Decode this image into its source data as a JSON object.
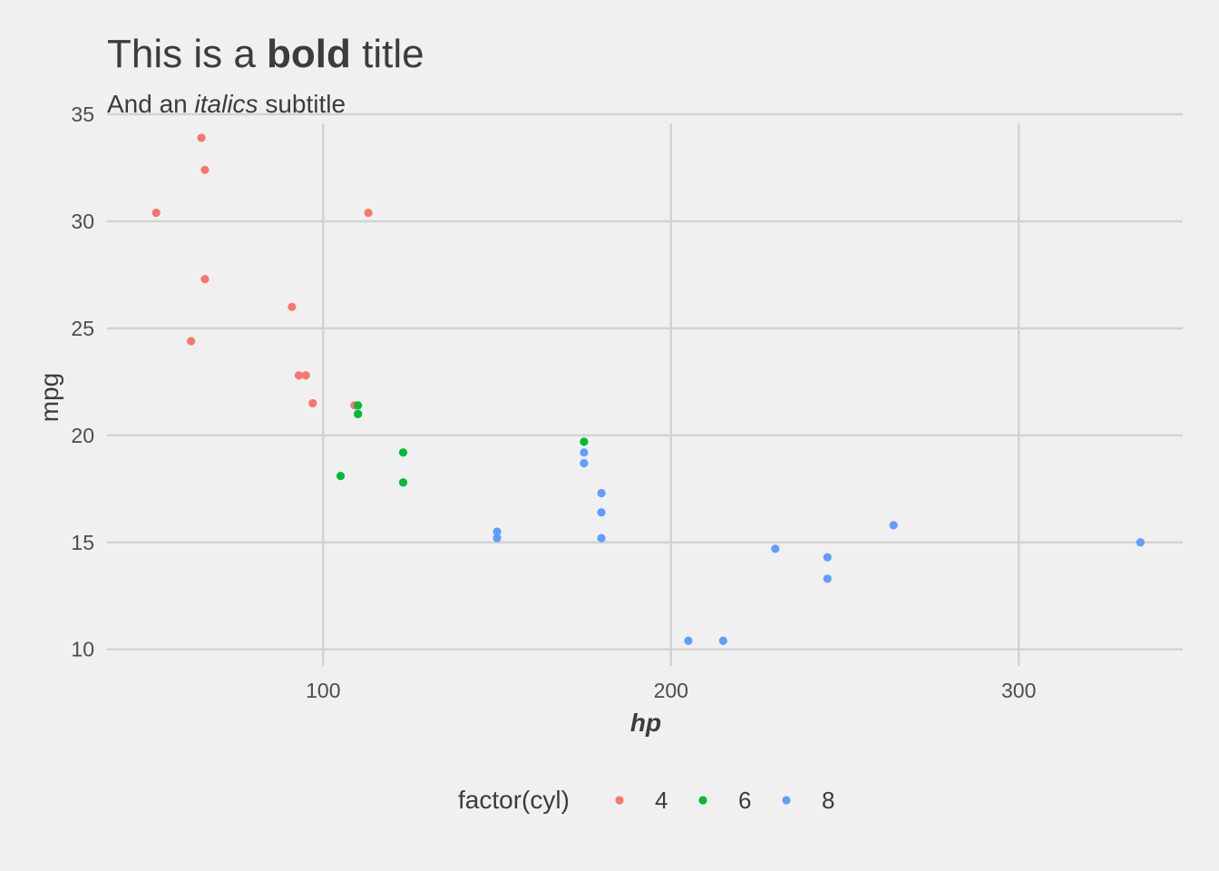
{
  "chart_data": {
    "type": "scatter",
    "title_parts": [
      {
        "text": "This is a ",
        "style": "plain"
      },
      {
        "text": "bold",
        "style": "bold"
      },
      {
        "text": " title",
        "style": "plain"
      }
    ],
    "subtitle_parts": [
      {
        "text": "And an ",
        "style": "plain"
      },
      {
        "text": "italics",
        "style": "italic"
      },
      {
        "text": " subtitle",
        "style": "plain"
      }
    ],
    "xlabel": "hp",
    "ylabel": "mpg",
    "xlim": [
      37.85,
      347.15
    ],
    "ylim": [
      9.225,
      34.575
    ],
    "xticks": [
      100,
      200,
      300
    ],
    "yticks": [
      10,
      15,
      20,
      25,
      30,
      35
    ],
    "grid": true,
    "legend": {
      "title": "factor(cyl)",
      "position": "bottom"
    },
    "series": [
      {
        "name": "4",
        "color": "#F8766D",
        "x": [
          93,
          62,
          95,
          66,
          52,
          65,
          97,
          66,
          91,
          113,
          109
        ],
        "y": [
          22.8,
          24.4,
          22.8,
          32.4,
          30.4,
          33.9,
          21.5,
          27.3,
          26.0,
          30.4,
          21.4
        ]
      },
      {
        "name": "6",
        "color": "#00BA38",
        "x": [
          110,
          110,
          110,
          105,
          123,
          123,
          175
        ],
        "y": [
          21.0,
          21.0,
          21.4,
          18.1,
          19.2,
          17.8,
          19.7
        ]
      },
      {
        "name": "8",
        "color": "#619CFF",
        "x": [
          175,
          245,
          180,
          180,
          180,
          205,
          215,
          230,
          150,
          150,
          245,
          175,
          264,
          335
        ],
        "y": [
          18.7,
          14.3,
          16.4,
          17.3,
          15.2,
          10.4,
          10.4,
          14.7,
          15.5,
          15.2,
          13.3,
          19.2,
          15.8,
          15.0
        ]
      }
    ]
  }
}
